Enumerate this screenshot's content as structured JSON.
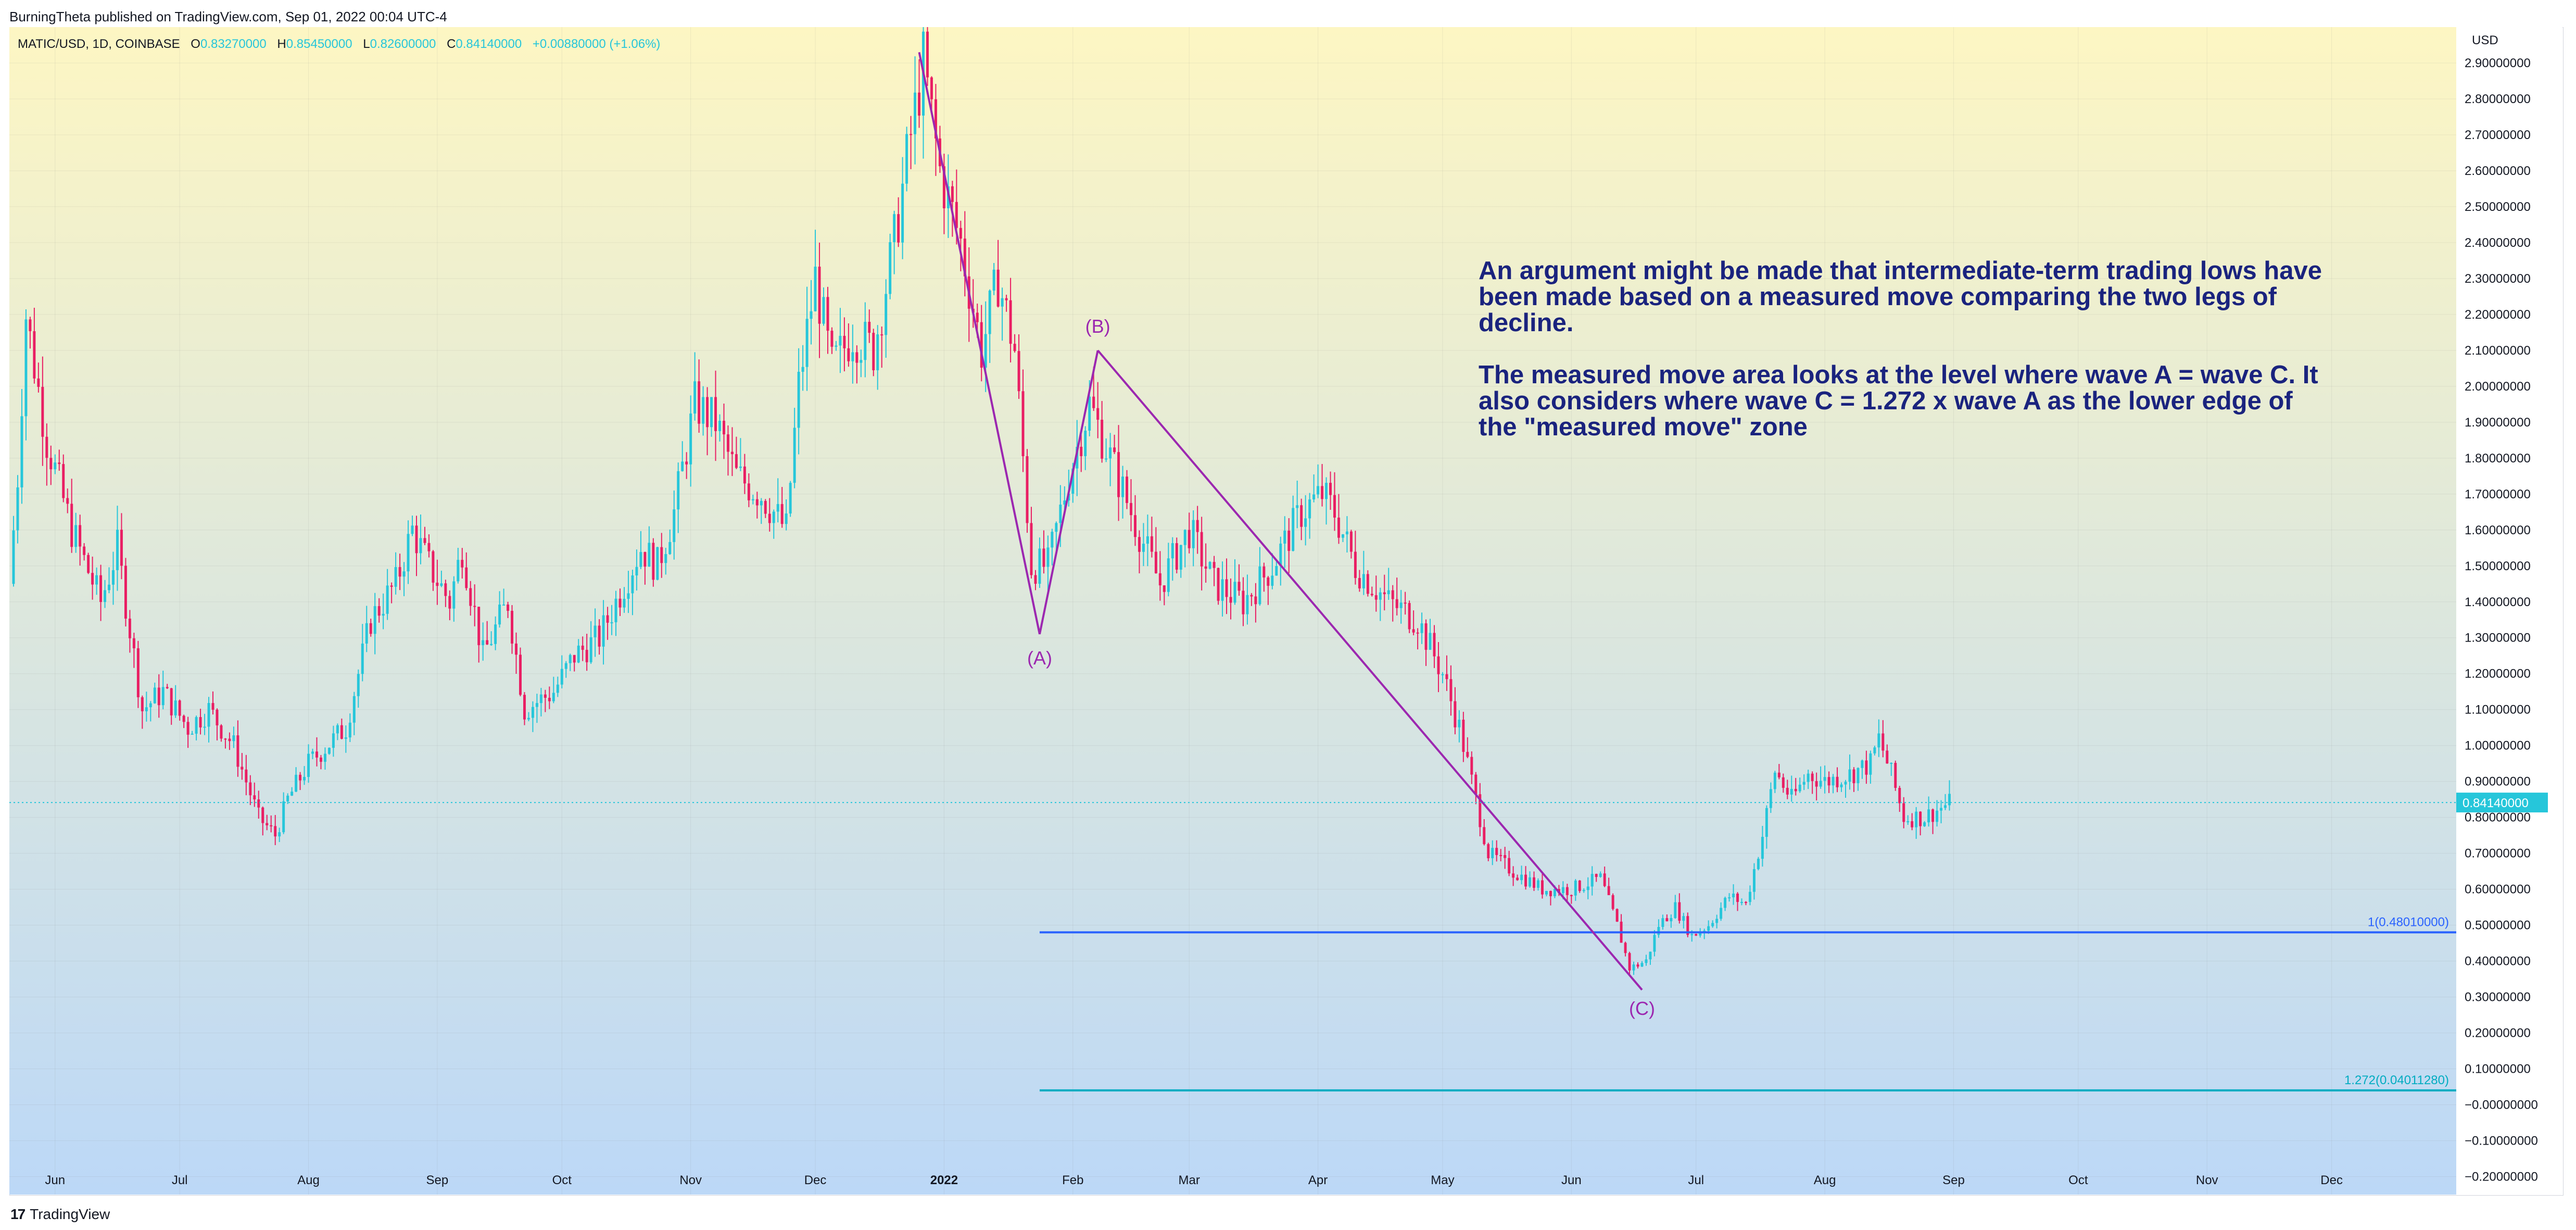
{
  "publish_line": "BurningTheta published on TradingView.com, Sep 01, 2022 00:04 UTC-4",
  "legend": {
    "symbol": "MATIC/USD, 1D, COINBASE",
    "o_label": "O",
    "o": "0.83270000",
    "h_label": "H",
    "h": "0.85450000",
    "l_label": "L",
    "l": "0.82600000",
    "c_label": "C",
    "c": "0.84140000",
    "change": "+0.00880000 (+1.06%)"
  },
  "annotation": "An argument might be made that intermediate-term trading lows have been made based on a measured move comparing the two legs of decline.\n\nThe measured move area looks at the level where wave A = wave C. It also considers where wave C = 1.272 x wave A as the lower edge of the \"measured move\" zone",
  "footer": {
    "logo": "17",
    "brand": "TradingView"
  },
  "colors": {
    "up": "#26c6da",
    "down": "#e91e63",
    "wave": "#9c27b0",
    "fib1": "#2962ff",
    "fib2": "#00acc1",
    "bg_top": "#fdf6c3",
    "bg_bottom": "#bcd8f7",
    "annotation": "#1a237e"
  },
  "chart_data": {
    "type": "candlestick",
    "symbol": "MATIC/USD",
    "interval": "1D",
    "exchange": "COINBASE",
    "currency": "USD",
    "ylim": [
      -0.25,
      3.0
    ],
    "y_ticks": [
      "2.90000000",
      "2.80000000",
      "2.70000000",
      "2.60000000",
      "2.50000000",
      "2.40000000",
      "2.30000000",
      "2.20000000",
      "2.10000000",
      "2.00000000",
      "1.90000000",
      "1.80000000",
      "1.70000000",
      "1.60000000",
      "1.50000000",
      "1.40000000",
      "1.30000000",
      "1.20000000",
      "1.10000000",
      "1.00000000",
      "0.90000000",
      "0.80000000",
      "0.70000000",
      "0.60000000",
      "0.50000000",
      "0.40000000",
      "0.30000000",
      "0.20000000",
      "0.10000000",
      "−0.00000000",
      "−0.10000000",
      "−0.20000000"
    ],
    "x_ticks": [
      {
        "label": "Jun",
        "date": "2021-06-01"
      },
      {
        "label": "Jul",
        "date": "2021-07-01"
      },
      {
        "label": "Aug",
        "date": "2021-08-01"
      },
      {
        "label": "Sep",
        "date": "2021-09-01"
      },
      {
        "label": "Oct",
        "date": "2021-10-01"
      },
      {
        "label": "Nov",
        "date": "2021-11-01"
      },
      {
        "label": "Dec",
        "date": "2021-12-01"
      },
      {
        "label": "2022",
        "date": "2022-01-01",
        "bold": true
      },
      {
        "label": "Feb",
        "date": "2022-02-01"
      },
      {
        "label": "Mar",
        "date": "2022-03-01"
      },
      {
        "label": "Apr",
        "date": "2022-04-01"
      },
      {
        "label": "May",
        "date": "2022-05-01"
      },
      {
        "label": "Jun",
        "date": "2022-06-01"
      },
      {
        "label": "Jul",
        "date": "2022-07-01"
      },
      {
        "label": "Aug",
        "date": "2022-08-01"
      },
      {
        "label": "Sep",
        "date": "2022-09-01"
      },
      {
        "label": "Oct",
        "date": "2022-10-01"
      },
      {
        "label": "Nov",
        "date": "2022-11-01"
      },
      {
        "label": "Dec",
        "date": "2022-12-01"
      }
    ],
    "x_range": [
      "2021-05-21",
      "2022-12-31"
    ],
    "last_price": {
      "label": "0.84140000",
      "value": 0.8414
    },
    "price_path": [
      {
        "date": "2021-05-21",
        "close": 1.45
      },
      {
        "date": "2021-05-23",
        "close": 1.75
      },
      {
        "date": "2021-05-25",
        "close": 2.2
      },
      {
        "date": "2021-05-30",
        "close": 1.85
      },
      {
        "date": "2021-06-05",
        "close": 1.6
      },
      {
        "date": "2021-06-12",
        "close": 1.4
      },
      {
        "date": "2021-06-16",
        "close": 1.55
      },
      {
        "date": "2021-06-22",
        "close": 1.1
      },
      {
        "date": "2021-06-27",
        "close": 1.15
      },
      {
        "date": "2021-07-03",
        "close": 1.05
      },
      {
        "date": "2021-07-08",
        "close": 1.1
      },
      {
        "date": "2021-07-14",
        "close": 1.0
      },
      {
        "date": "2021-07-20",
        "close": 0.8
      },
      {
        "date": "2021-07-24",
        "close": 0.75
      },
      {
        "date": "2021-07-27",
        "close": 0.85
      },
      {
        "date": "2021-08-01",
        "close": 0.95
      },
      {
        "date": "2021-08-10",
        "close": 1.05
      },
      {
        "date": "2021-08-16",
        "close": 1.35
      },
      {
        "date": "2021-08-22",
        "close": 1.45
      },
      {
        "date": "2021-08-26",
        "close": 1.6
      },
      {
        "date": "2021-08-30",
        "close": 1.5
      },
      {
        "date": "2021-09-04",
        "close": 1.4
      },
      {
        "date": "2021-09-07",
        "close": 1.55
      },
      {
        "date": "2021-09-12",
        "close": 1.25
      },
      {
        "date": "2021-09-18",
        "close": 1.4
      },
      {
        "date": "2021-09-22",
        "close": 1.1
      },
      {
        "date": "2021-09-29",
        "close": 1.15
      },
      {
        "date": "2021-10-04",
        "close": 1.25
      },
      {
        "date": "2021-10-10",
        "close": 1.3
      },
      {
        "date": "2021-10-16",
        "close": 1.45
      },
      {
        "date": "2021-10-20",
        "close": 1.55
      },
      {
        "date": "2021-10-24",
        "close": 1.5
      },
      {
        "date": "2021-10-28",
        "close": 1.65
      },
      {
        "date": "2021-11-02",
        "close": 1.95
      },
      {
        "date": "2021-11-07",
        "close": 1.9
      },
      {
        "date": "2021-11-12",
        "close": 1.75
      },
      {
        "date": "2021-11-18",
        "close": 1.7
      },
      {
        "date": "2021-11-24",
        "close": 1.6
      },
      {
        "date": "2021-11-27",
        "close": 2.0
      },
      {
        "date": "2021-12-01",
        "close": 2.3
      },
      {
        "date": "2021-12-05",
        "close": 2.05
      },
      {
        "date": "2021-12-10",
        "close": 2.15
      },
      {
        "date": "2021-12-15",
        "close": 2.1
      },
      {
        "date": "2021-12-20",
        "close": 2.4
      },
      {
        "date": "2021-12-24",
        "close": 2.7
      },
      {
        "date": "2021-12-27",
        "close": 2.9
      },
      {
        "date": "2021-12-31",
        "close": 2.6
      },
      {
        "date": "2022-01-05",
        "close": 2.4
      },
      {
        "date": "2022-01-10",
        "close": 2.1
      },
      {
        "date": "2022-01-14",
        "close": 2.3
      },
      {
        "date": "2022-01-18",
        "close": 2.1
      },
      {
        "date": "2022-01-22",
        "close": 1.5
      },
      {
        "date": "2022-01-26",
        "close": 1.5
      },
      {
        "date": "2022-01-31",
        "close": 1.75
      },
      {
        "date": "2022-02-05",
        "close": 1.95
      },
      {
        "date": "2022-02-10",
        "close": 1.8
      },
      {
        "date": "2022-02-15",
        "close": 1.65
      },
      {
        "date": "2022-02-22",
        "close": 1.45
      },
      {
        "date": "2022-03-01",
        "close": 1.6
      },
      {
        "date": "2022-03-07",
        "close": 1.45
      },
      {
        "date": "2022-03-14",
        "close": 1.4
      },
      {
        "date": "2022-03-21",
        "close": 1.5
      },
      {
        "date": "2022-03-28",
        "close": 1.65
      },
      {
        "date": "2022-04-02",
        "close": 1.7
      },
      {
        "date": "2022-04-05",
        "close": 1.65
      },
      {
        "date": "2022-04-10",
        "close": 1.5
      },
      {
        "date": "2022-04-18",
        "close": 1.4
      },
      {
        "date": "2022-04-25",
        "close": 1.35
      },
      {
        "date": "2022-05-01",
        "close": 1.2
      },
      {
        "date": "2022-05-05",
        "close": 1.05
      },
      {
        "date": "2022-05-09",
        "close": 0.85
      },
      {
        "date": "2022-05-12",
        "close": 0.7
      },
      {
        "date": "2022-05-18",
        "close": 0.65
      },
      {
        "date": "2022-05-25",
        "close": 0.6
      },
      {
        "date": "2022-06-01",
        "close": 0.6
      },
      {
        "date": "2022-06-08",
        "close": 0.63
      },
      {
        "date": "2022-06-12",
        "close": 0.5
      },
      {
        "date": "2022-06-15",
        "close": 0.38
      },
      {
        "date": "2022-06-19",
        "close": 0.4
      },
      {
        "date": "2022-06-22",
        "close": 0.5
      },
      {
        "date": "2022-06-26",
        "close": 0.55
      },
      {
        "date": "2022-06-30",
        "close": 0.47
      },
      {
        "date": "2022-07-04",
        "close": 0.5
      },
      {
        "date": "2022-07-09",
        "close": 0.58
      },
      {
        "date": "2022-07-13",
        "close": 0.56
      },
      {
        "date": "2022-07-17",
        "close": 0.75
      },
      {
        "date": "2022-07-20",
        "close": 0.93
      },
      {
        "date": "2022-07-24",
        "close": 0.85
      },
      {
        "date": "2022-07-28",
        "close": 0.92
      },
      {
        "date": "2022-08-01",
        "close": 0.9
      },
      {
        "date": "2022-08-07",
        "close": 0.92
      },
      {
        "date": "2022-08-12",
        "close": 0.95
      },
      {
        "date": "2022-08-14",
        "close": 1.02
      },
      {
        "date": "2022-08-17",
        "close": 0.92
      },
      {
        "date": "2022-08-20",
        "close": 0.8
      },
      {
        "date": "2022-08-25",
        "close": 0.8
      },
      {
        "date": "2022-08-31",
        "close": 0.84
      }
    ],
    "waves": [
      {
        "label": "(A)",
        "from": {
          "date": "2021-12-26",
          "price": 2.93
        },
        "to": {
          "date": "2022-01-24",
          "price": 1.31
        }
      },
      {
        "label": "(B)",
        "from": {
          "date": "2022-01-24",
          "price": 1.31
        },
        "to": {
          "date": "2022-02-07",
          "price": 2.1
        }
      },
      {
        "label": "(C)",
        "from": {
          "date": "2022-02-07",
          "price": 2.1
        },
        "to": {
          "date": "2022-06-18",
          "price": 0.32
        }
      }
    ],
    "fib_levels": [
      {
        "label": "1(0.48010000)",
        "value": 0.4801,
        "from_date": "2022-01-24"
      },
      {
        "label": "1.272(0.04011280)",
        "value": 0.0401128,
        "from_date": "2022-01-24"
      }
    ],
    "grid": true
  }
}
